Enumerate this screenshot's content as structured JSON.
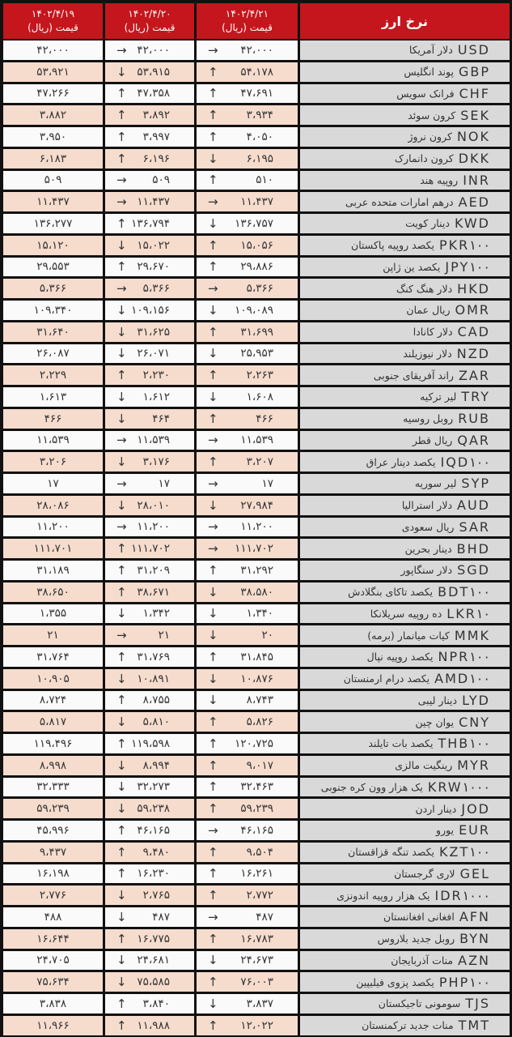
{
  "header": {
    "title": "نرخ ارز",
    "price_label": "قیمت (ریال)",
    "dates": [
      "۱۴۰۲/۴/۱۹",
      "۱۴۰۲/۴/۲۰",
      "۱۴۰۲/۴/۲۱"
    ]
  },
  "colors": {
    "header": "#c4161c",
    "row_alt": "#f6dccd",
    "row": "#fafafa",
    "name_col": "#d9d9d9"
  },
  "rows": [
    {
      "code": "USD",
      "name": "دلار آمریکا",
      "v19": "۴۲،۰۰۰",
      "a20": "→",
      "v20": "۴۲،۰۰۰",
      "a21": "→",
      "v21": "۴۲،۰۰۰"
    },
    {
      "code": "GBP",
      "name": "پوند انگلیس",
      "v19": "۵۳،۹۲۱",
      "a20": "↓",
      "v20": "۵۳،۹۱۵",
      "a21": "↑",
      "v21": "۵۴،۱۷۸"
    },
    {
      "code": "CHF",
      "name": "فرانک سویس",
      "v19": "۴۷،۲۶۶",
      "a20": "↑",
      "v20": "۴۷،۳۵۸",
      "a21": "↑",
      "v21": "۴۷،۶۹۱"
    },
    {
      "code": "SEK",
      "name": "کرون سوئد",
      "v19": "۳،۸۸۲",
      "a20": "↑",
      "v20": "۳،۸۹۲",
      "a21": "↑",
      "v21": "۳،۹۳۴"
    },
    {
      "code": "NOK",
      "name": "کرون نروژ",
      "v19": "۳،۹۵۰",
      "a20": "↑",
      "v20": "۳،۹۹۷",
      "a21": "↑",
      "v21": "۴،۰۵۰"
    },
    {
      "code": "DKK",
      "name": "کرون دانمارک",
      "v19": "۶،۱۸۳",
      "a20": "↑",
      "v20": "۶،۱۹۶",
      "a21": "↓",
      "v21": "۶،۱۹۵"
    },
    {
      "code": "INR",
      "name": "روپیه هند",
      "v19": "۵۰۹",
      "a20": "→",
      "v20": "۵۰۹",
      "a21": "↑",
      "v21": "۵۱۰"
    },
    {
      "code": "AED",
      "name": "درهم امارات متحده عربی",
      "v19": "۱۱،۴۳۷",
      "a20": "→",
      "v20": "۱۱،۴۳۷",
      "a21": "→",
      "v21": "۱۱،۴۳۷"
    },
    {
      "code": "KWD",
      "name": "دینار کویت",
      "v19": "۱۳۶،۲۷۷",
      "a20": "↑",
      "v20": "۱۳۶،۷۹۴",
      "a21": "↓",
      "v21": "۱۳۶،۷۵۷"
    },
    {
      "code": "PKR۱۰۰",
      "name": "یکصد روپیه پاکستان",
      "v19": "۱۵،۱۲۰",
      "a20": "↓",
      "v20": "۱۵،۰۲۲",
      "a21": "↑",
      "v21": "۱۵،۰۵۶"
    },
    {
      "code": "JPY۱۰۰",
      "name": "یکصد ین ژاپن",
      "v19": "۲۹،۵۵۳",
      "a20": "↑",
      "v20": "۲۹،۶۷۰",
      "a21": "↑",
      "v21": "۲۹،۸۸۶"
    },
    {
      "code": "HKD",
      "name": "دلار هنگ کنگ",
      "v19": "۵،۳۶۶",
      "a20": "→",
      "v20": "۵،۳۶۶",
      "a21": "→",
      "v21": "۵،۳۶۶"
    },
    {
      "code": "OMR",
      "name": "ریال عمان",
      "v19": "۱۰۹،۳۴۰",
      "a20": "↓",
      "v20": "۱۰۹،۱۵۶",
      "a21": "↓",
      "v21": "۱۰۹،۰۸۹"
    },
    {
      "code": "CAD",
      "name": "دلار کانادا",
      "v19": "۳۱،۶۴۰",
      "a20": "↓",
      "v20": "۳۱،۶۲۵",
      "a21": "↑",
      "v21": "۳۱،۶۹۹"
    },
    {
      "code": "NZD",
      "name": "دلار نیوزیلند",
      "v19": "۲۶،۰۸۷",
      "a20": "↓",
      "v20": "۲۶،۰۷۱",
      "a21": "↓",
      "v21": "۲۵،۹۵۳"
    },
    {
      "code": "ZAR",
      "name": "راند آفریقای جنوبی",
      "v19": "۲،۲۲۹",
      "a20": "↑",
      "v20": "۲،۲۳۰",
      "a21": "↑",
      "v21": "۲،۲۶۳"
    },
    {
      "code": "TRY",
      "name": "لیر ترکیه",
      "v19": "۱،۶۱۳",
      "a20": "↓",
      "v20": "۱،۶۱۲",
      "a21": "↓",
      "v21": "۱،۶۰۸"
    },
    {
      "code": "RUB",
      "name": "روبل روسیه",
      "v19": "۴۶۶",
      "a20": "↓",
      "v20": "۴۶۴",
      "a21": "↑",
      "v21": "۴۶۶"
    },
    {
      "code": "QAR",
      "name": "ریال قطر",
      "v19": "۱۱،۵۳۹",
      "a20": "→",
      "v20": "۱۱،۵۳۹",
      "a21": "→",
      "v21": "۱۱،۵۳۹"
    },
    {
      "code": "IQD۱۰۰",
      "name": "یکصد دینار عراق",
      "v19": "۳،۲۰۶",
      "a20": "↓",
      "v20": "۳،۱۷۶",
      "a21": "↑",
      "v21": "۳،۲۰۷"
    },
    {
      "code": "SYP",
      "name": "لیر سوریه",
      "v19": "۱۷",
      "a20": "→",
      "v20": "۱۷",
      "a21": "→",
      "v21": "۱۷"
    },
    {
      "code": "AUD",
      "name": "دلار استرالیا",
      "v19": "۲۸،۰۸۶",
      "a20": "↓",
      "v20": "۲۸،۰۱۰",
      "a21": "↓",
      "v21": "۲۷،۹۸۴"
    },
    {
      "code": "SAR",
      "name": "ریال سعودی",
      "v19": "۱۱،۲۰۰",
      "a20": "→",
      "v20": "۱۱،۲۰۰",
      "a21": "→",
      "v21": "۱۱،۲۰۰"
    },
    {
      "code": "BHD",
      "name": "دینار بحرین",
      "v19": "۱۱۱،۷۰۱",
      "a20": "↑",
      "v20": "۱۱۱،۷۰۲",
      "a21": "→",
      "v21": "۱۱۱،۷۰۲"
    },
    {
      "code": "SGD",
      "name": "دلار سنگاپور",
      "v19": "۳۱،۱۸۹",
      "a20": "↑",
      "v20": "۳۱،۲۰۹",
      "a21": "↑",
      "v21": "۳۱،۲۹۲"
    },
    {
      "code": "BDT۱۰۰",
      "name": "یکصد تاکای بنگلادش",
      "v19": "۳۸،۶۵۰",
      "a20": "↑",
      "v20": "۳۸،۶۷۱",
      "a21": "↓",
      "v21": "۳۸،۵۸۰"
    },
    {
      "code": "LKR۱۰",
      "name": "ده روپیه سریلانکا",
      "v19": "۱،۳۵۵",
      "a20": "↓",
      "v20": "۱،۳۴۲",
      "a21": "↓",
      "v21": "۱،۳۴۰"
    },
    {
      "code": "MMK",
      "name": "کیات میانمار (برمه)",
      "v19": "۲۱",
      "a20": "→",
      "v20": "۲۱",
      "a21": "↓",
      "v21": "۲۰"
    },
    {
      "code": "NPR۱۰۰",
      "name": "یکصد روپیه نپال",
      "v19": "۳۱،۷۶۴",
      "a20": "↑",
      "v20": "۳۱،۷۶۹",
      "a21": "↑",
      "v21": "۳۱،۸۴۵"
    },
    {
      "code": "AMD۱۰۰",
      "name": "یکصد درام ارمنستان",
      "v19": "۱۰،۹۰۵",
      "a20": "↓",
      "v20": "۱۰،۸۹۱",
      "a21": "↓",
      "v21": "۱۰،۸۷۶"
    },
    {
      "code": "LYD",
      "name": "دینار لیبی",
      "v19": "۸،۷۲۴",
      "a20": "↑",
      "v20": "۸،۷۵۵",
      "a21": "↓",
      "v21": "۸،۷۴۳"
    },
    {
      "code": "CNY",
      "name": "یوان چین",
      "v19": "۵،۸۱۷",
      "a20": "↓",
      "v20": "۵،۸۱۰",
      "a21": "↑",
      "v21": "۵،۸۲۶"
    },
    {
      "code": "THB۱۰۰",
      "name": "یکصد بات تایلند",
      "v19": "۱۱۹،۴۹۶",
      "a20": "↑",
      "v20": "۱۱۹،۵۹۸",
      "a21": "↑",
      "v21": "۱۲۰،۷۲۵"
    },
    {
      "code": "MYR",
      "name": "رینگیت مالزی",
      "v19": "۸،۹۹۸",
      "a20": "↓",
      "v20": "۸،۹۹۴",
      "a21": "↑",
      "v21": "۹،۰۱۷"
    },
    {
      "code": "KRW۱۰۰۰",
      "name": "یک هزار وون کره جنوبی",
      "v19": "۳۲،۳۳۳",
      "a20": "↓",
      "v20": "۳۲،۲۷۳",
      "a21": "↑",
      "v21": "۳۲،۴۶۳"
    },
    {
      "code": "JOD",
      "name": "دینار اردن",
      "v19": "۵۹،۲۳۹",
      "a20": "↓",
      "v20": "۵۹،۲۳۸",
      "a21": "↑",
      "v21": "۵۹،۲۳۹"
    },
    {
      "code": "EUR",
      "name": "یورو",
      "v19": "۴۵،۹۹۶",
      "a20": "↑",
      "v20": "۴۶،۱۶۵",
      "a21": "→",
      "v21": "۴۶،۱۶۵"
    },
    {
      "code": "KZT۱۰۰",
      "name": "یکصد تنگه قزاقستان",
      "v19": "۹،۴۳۷",
      "a20": "↑",
      "v20": "۹،۴۸۰",
      "a21": "↑",
      "v21": "۹،۵۰۴"
    },
    {
      "code": "GEL",
      "name": "لاری گرجستان",
      "v19": "۱۶،۱۹۸",
      "a20": "↑",
      "v20": "۱۶،۲۳۰",
      "a21": "↑",
      "v21": "۱۶،۲۶۱"
    },
    {
      "code": "IDR۱۰۰۰",
      "name": "یک هزار روپیه اندونزی",
      "v19": "۲،۷۷۶",
      "a20": "↓",
      "v20": "۲،۷۶۵",
      "a21": "↑",
      "v21": "۲،۷۷۲"
    },
    {
      "code": "AFN",
      "name": "افغانی افغانستان",
      "v19": "۴۸۸",
      "a20": "↓",
      "v20": "۴۸۷",
      "a21": "→",
      "v21": "۴۸۷"
    },
    {
      "code": "BYN",
      "name": "روبل جدید بلاروس",
      "v19": "۱۶،۶۴۴",
      "a20": "↑",
      "v20": "۱۶،۷۷۵",
      "a21": "↑",
      "v21": "۱۶،۷۸۳"
    },
    {
      "code": "AZN",
      "name": "منات آذربایجان",
      "v19": "۲۴،۷۰۵",
      "a20": "↓",
      "v20": "۲۴،۶۸۱",
      "a21": "↓",
      "v21": "۲۴،۶۷۳"
    },
    {
      "code": "PHP۱۰۰",
      "name": "یکصد پزوی فیلیپین",
      "v19": "۷۵،۶۳۴",
      "a20": "↓",
      "v20": "۷۵،۵۸۵",
      "a21": "↑",
      "v21": "۷۶،۰۰۳"
    },
    {
      "code": "TJS",
      "name": "سومونی تاجیکستان",
      "v19": "۳،۸۳۸",
      "a20": "↑",
      "v20": "۳،۸۴۰",
      "a21": "↓",
      "v21": "۳،۸۳۷"
    },
    {
      "code": "TMT",
      "name": "منات جدید ترکمنستان",
      "v19": "۱۱،۹۶۶",
      "a20": "↑",
      "v20": "۱۱،۹۸۸",
      "a21": "↑",
      "v21": "۱۲،۰۲۲"
    }
  ]
}
